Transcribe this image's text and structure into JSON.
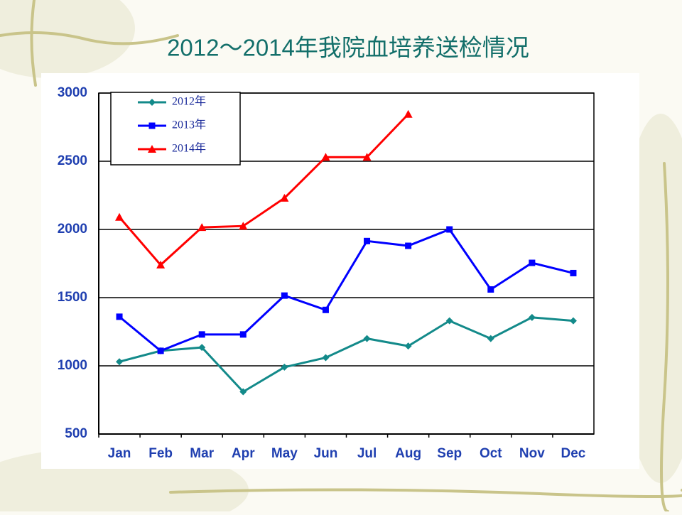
{
  "chart_data": {
    "type": "line",
    "title": "2012～2014年我院血培养送检情况",
    "categories": [
      "Jan",
      "Feb",
      "Mar",
      "Apr",
      "May",
      "Jun",
      "Jul",
      "Aug",
      "Sep",
      "Oct",
      "Nov",
      "Dec"
    ],
    "series": [
      {
        "name": "2012年",
        "color": "#138a8a",
        "marker": "diamond",
        "values": [
          1030,
          1110,
          1135,
          810,
          990,
          1060,
          1200,
          1145,
          1330,
          1200,
          1355,
          1330
        ]
      },
      {
        "name": "2013年",
        "color": "#0000ff",
        "marker": "square",
        "values": [
          1360,
          1110,
          1230,
          1230,
          1515,
          1410,
          1915,
          1880,
          2000,
          1560,
          1755,
          1680
        ]
      },
      {
        "name": "2014年",
        "color": "#ff0000",
        "marker": "triangle",
        "values": [
          2090,
          1740,
          2015,
          2025,
          2230,
          2530,
          2530,
          2845,
          null,
          null,
          null,
          null
        ]
      }
    ],
    "ylim": [
      500,
      3000
    ],
    "yticks": [
      500,
      1000,
      1500,
      2000,
      2500,
      3000
    ],
    "grid": true,
    "legend": "top-left"
  }
}
